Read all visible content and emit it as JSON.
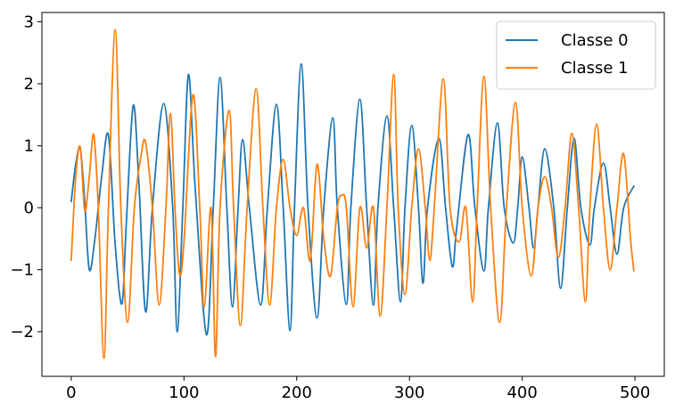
{
  "chart_data": {
    "type": "line",
    "title": "",
    "xlabel": "",
    "ylabel": "",
    "xlim": [
      -26,
      526
    ],
    "ylim": [
      -2.72,
      3.15
    ],
    "grid": false,
    "legend_placement": "top-right",
    "x_ticks": [
      0,
      100,
      200,
      300,
      400,
      500
    ],
    "y_ticks": [
      3,
      2,
      1,
      0,
      -1,
      -2
    ],
    "x_tick_labels": [
      "0",
      "100",
      "200",
      "300",
      "400",
      "500"
    ],
    "y_tick_labels": [
      "3",
      "2",
      "1",
      "0",
      "−1",
      "−2"
    ],
    "series": [
      {
        "name": "Classe 0",
        "color": "#1f77b4",
        "points": [
          [
            0,
            0.1
          ],
          [
            4,
            0.7
          ],
          [
            8,
            0.95
          ],
          [
            12,
            0.1
          ],
          [
            16,
            -1.0
          ],
          [
            21,
            -0.5
          ],
          [
            27,
            0.5
          ],
          [
            33,
            1.17
          ],
          [
            39,
            -0.6
          ],
          [
            45,
            -1.55
          ],
          [
            49,
            -0.2
          ],
          [
            55,
            1.65
          ],
          [
            60,
            0.4
          ],
          [
            66,
            -1.68
          ],
          [
            72,
            0.0
          ],
          [
            82,
            1.68
          ],
          [
            90,
            0.0
          ],
          [
            94,
            -2.0
          ],
          [
            99,
            0.0
          ],
          [
            104,
            2.15
          ],
          [
            110,
            0.3
          ],
          [
            120,
            -2.05
          ],
          [
            126,
            0.0
          ],
          [
            132,
            2.1
          ],
          [
            138,
            0.0
          ],
          [
            143,
            -1.6
          ],
          [
            148,
            0.0
          ],
          [
            152,
            1.1
          ],
          [
            158,
            0.0
          ],
          [
            168,
            -1.57
          ],
          [
            174,
            0.0
          ],
          [
            182,
            1.67
          ],
          [
            188,
            0.0
          ],
          [
            194,
            -1.98
          ],
          [
            198,
            0.0
          ],
          [
            204,
            2.32
          ],
          [
            210,
            0.0
          ],
          [
            218,
            -1.78
          ],
          [
            224,
            0.0
          ],
          [
            232,
            1.45
          ],
          [
            236,
            0.0
          ],
          [
            244,
            -1.56
          ],
          [
            248,
            0.0
          ],
          [
            256,
            1.75
          ],
          [
            262,
            0.0
          ],
          [
            268,
            -1.57
          ],
          [
            272,
            0.0
          ],
          [
            280,
            1.48
          ],
          [
            286,
            0.0
          ],
          [
            292,
            -1.52
          ],
          [
            296,
            0.0
          ],
          [
            302,
            1.33
          ],
          [
            308,
            0.0
          ],
          [
            312,
            -1.22
          ],
          [
            316,
            0.0
          ],
          [
            326,
            1.12
          ],
          [
            332,
            0.0
          ],
          [
            338,
            -0.95
          ],
          [
            342,
            -0.3
          ],
          [
            352,
            1.18
          ],
          [
            358,
            0.0
          ],
          [
            366,
            -1.02
          ],
          [
            370,
            0.0
          ],
          [
            378,
            1.37
          ],
          [
            384,
            0.0
          ],
          [
            392,
            -0.57
          ],
          [
            396,
            0.0
          ],
          [
            400,
            0.82
          ],
          [
            406,
            0.0
          ],
          [
            410,
            -0.65
          ],
          [
            414,
            0.0
          ],
          [
            420,
            0.95
          ],
          [
            428,
            0.0
          ],
          [
            434,
            -1.3
          ],
          [
            440,
            0.0
          ],
          [
            446,
            1.12
          ],
          [
            452,
            0.0
          ],
          [
            460,
            -0.6
          ],
          [
            464,
            0.0
          ],
          [
            472,
            0.72
          ],
          [
            478,
            0.0
          ],
          [
            484,
            -0.75
          ],
          [
            490,
            0.0
          ],
          [
            499,
            0.35
          ]
        ]
      },
      {
        "name": "Classe 1",
        "color": "#ff7f0e",
        "points": [
          [
            0,
            -0.85
          ],
          [
            4,
            0.5
          ],
          [
            8,
            0.98
          ],
          [
            12,
            -0.05
          ],
          [
            16,
            0.5
          ],
          [
            20,
            1.18
          ],
          [
            24,
            0.0
          ],
          [
            29,
            -2.43
          ],
          [
            33,
            0.0
          ],
          [
            39,
            2.87
          ],
          [
            44,
            0.0
          ],
          [
            50,
            -1.85
          ],
          [
            56,
            0.0
          ],
          [
            62,
            0.85
          ],
          [
            66,
            1.05
          ],
          [
            72,
            0.0
          ],
          [
            78,
            -1.57
          ],
          [
            84,
            0.0
          ],
          [
            88,
            1.52
          ],
          [
            92,
            0.0
          ],
          [
            96,
            -1.07
          ],
          [
            100,
            -0.55
          ],
          [
            108,
            1.82
          ],
          [
            114,
            0.0
          ],
          [
            118,
            -1.6
          ],
          [
            124,
            0.0
          ],
          [
            128,
            -2.4
          ],
          [
            132,
            0.0
          ],
          [
            140,
            1.57
          ],
          [
            144,
            0.0
          ],
          [
            150,
            -1.9
          ],
          [
            156,
            0.0
          ],
          [
            164,
            1.92
          ],
          [
            170,
            0.0
          ],
          [
            176,
            -1.57
          ],
          [
            182,
            0.0
          ],
          [
            188,
            0.78
          ],
          [
            194,
            0.0
          ],
          [
            200,
            -0.45
          ],
          [
            206,
            0.0
          ],
          [
            212,
            -0.85
          ],
          [
            218,
            0.7
          ],
          [
            224,
            -0.5
          ],
          [
            230,
            -1.1
          ],
          [
            236,
            0.0
          ],
          [
            240,
            0.2
          ],
          [
            244,
            0.0
          ],
          [
            250,
            -1.6
          ],
          [
            256,
            0.0
          ],
          [
            262,
            -0.65
          ],
          [
            268,
            0.0
          ],
          [
            274,
            -1.75
          ],
          [
            280,
            0.0
          ],
          [
            286,
            2.15
          ],
          [
            290,
            0.0
          ],
          [
            296,
            -1.4
          ],
          [
            302,
            0.0
          ],
          [
            308,
            0.95
          ],
          [
            314,
            0.0
          ],
          [
            318,
            -0.85
          ],
          [
            322,
            0.0
          ],
          [
            330,
            2.08
          ],
          [
            336,
            0.0
          ],
          [
            344,
            -0.55
          ],
          [
            350,
            0.0
          ],
          [
            356,
            -1.52
          ],
          [
            360,
            0.0
          ],
          [
            366,
            2.12
          ],
          [
            372,
            0.0
          ],
          [
            380,
            -1.85
          ],
          [
            386,
            0.0
          ],
          [
            394,
            1.7
          ],
          [
            400,
            0.0
          ],
          [
            408,
            -1.1
          ],
          [
            414,
            0.0
          ],
          [
            420,
            0.5
          ],
          [
            426,
            0.0
          ],
          [
            432,
            -0.8
          ],
          [
            438,
            0.0
          ],
          [
            444,
            1.2
          ],
          [
            450,
            0.0
          ],
          [
            456,
            -1.52
          ],
          [
            460,
            0.0
          ],
          [
            466,
            1.35
          ],
          [
            472,
            0.0
          ],
          [
            478,
            -1.0
          ],
          [
            484,
            0.0
          ],
          [
            490,
            0.87
          ],
          [
            496,
            -0.5
          ],
          [
            499,
            -1.02
          ]
        ]
      }
    ]
  }
}
